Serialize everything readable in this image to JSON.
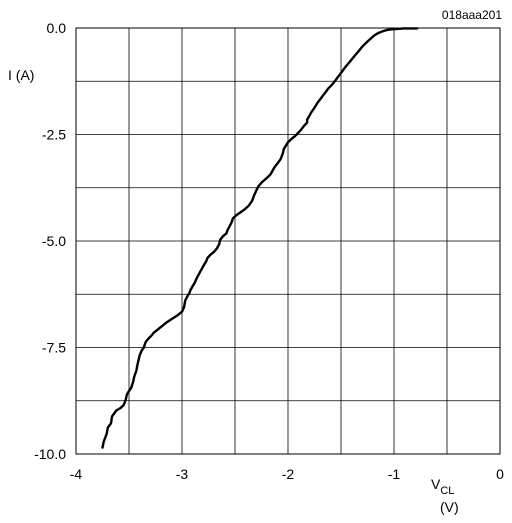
{
  "figure_ref": "018aaa201",
  "chart_data": {
    "type": "line",
    "ylabel": "I (A)",
    "xlabel_main": "V",
    "xlabel_sub": "CL",
    "xlabel_unit": "(V)",
    "xlim": [
      -4,
      0
    ],
    "ylim": [
      -10,
      0
    ],
    "x_ticks": [
      -4,
      -3,
      -2,
      -1,
      0
    ],
    "x_tick_labels": [
      "-4",
      "-3",
      "-2",
      "-1",
      "0"
    ],
    "y_ticks": [
      0,
      -2.5,
      -5,
      -7.5,
      -10
    ],
    "y_tick_labels": [
      "0.0",
      "-2.5",
      "-5.0",
      "-7.5",
      "-10.0"
    ],
    "grid": true,
    "grid_x_step": 0.5,
    "grid_y_step": 1.25,
    "line_color": "#000000",
    "series": [
      {
        "x": [
          -3.75,
          -3.74,
          -3.71,
          -3.7,
          -3.67,
          -3.66,
          -3.62,
          -3.58,
          -3.55,
          -3.53,
          -3.52,
          -3.5,
          -3.48,
          -3.46,
          -3.45,
          -3.43,
          -3.42,
          -3.41,
          -3.4,
          -3.38,
          -3.36,
          -3.35,
          -3.34,
          -3.32,
          -3.3,
          -3.28,
          -3.27,
          -3.24,
          -3.2,
          -3.15,
          -3.09,
          -3.04,
          -3.0,
          -2.98,
          -2.97,
          -2.95,
          -2.93,
          -2.92,
          -2.9,
          -2.88,
          -2.87,
          -2.85,
          -2.83,
          -2.81,
          -2.79,
          -2.77,
          -2.76,
          -2.73,
          -2.7,
          -2.67,
          -2.65,
          -2.64,
          -2.61,
          -2.58,
          -2.57,
          -2.55,
          -2.53,
          -2.52,
          -2.49,
          -2.45,
          -2.41,
          -2.37,
          -2.34,
          -2.32,
          -2.3,
          -2.28,
          -2.25,
          -2.2,
          -2.17,
          -2.15,
          -2.13,
          -2.1,
          -2.07,
          -2.05,
          -2.04,
          -2.02,
          -2.0,
          -1.97,
          -1.94,
          -1.91,
          -1.88,
          -1.85,
          -1.82,
          -1.82,
          -1.8,
          -1.78,
          -1.75,
          -1.72,
          -1.68,
          -1.65,
          -1.62,
          -1.58,
          -1.55,
          -1.52,
          -1.49,
          -1.46,
          -1.42,
          -1.38,
          -1.34,
          -1.3,
          -1.26,
          -1.22,
          -1.19,
          -1.15,
          -1.11,
          -1.07,
          -1.02,
          -0.97,
          -0.91,
          -0.85,
          -0.78
        ],
        "y": [
          -9.85,
          -9.72,
          -9.52,
          -9.38,
          -9.28,
          -9.12,
          -8.98,
          -8.92,
          -8.85,
          -8.72,
          -8.6,
          -8.52,
          -8.45,
          -8.3,
          -8.18,
          -8.04,
          -7.9,
          -7.8,
          -7.69,
          -7.57,
          -7.5,
          -7.42,
          -7.36,
          -7.3,
          -7.25,
          -7.2,
          -7.16,
          -7.1,
          -7.02,
          -6.92,
          -6.82,
          -6.74,
          -6.66,
          -6.55,
          -6.4,
          -6.3,
          -6.22,
          -6.15,
          -6.06,
          -5.98,
          -5.92,
          -5.82,
          -5.73,
          -5.64,
          -5.55,
          -5.47,
          -5.4,
          -5.32,
          -5.26,
          -5.17,
          -5.08,
          -4.97,
          -4.88,
          -4.82,
          -4.74,
          -4.65,
          -4.55,
          -4.47,
          -4.4,
          -4.33,
          -4.26,
          -4.17,
          -4.06,
          -3.93,
          -3.82,
          -3.72,
          -3.63,
          -3.52,
          -3.45,
          -3.37,
          -3.28,
          -3.18,
          -3.08,
          -2.95,
          -2.84,
          -2.76,
          -2.68,
          -2.61,
          -2.55,
          -2.48,
          -2.4,
          -2.3,
          -2.22,
          -2.15,
          -2.07,
          -1.98,
          -1.87,
          -1.75,
          -1.62,
          -1.52,
          -1.42,
          -1.32,
          -1.22,
          -1.12,
          -1.02,
          -0.92,
          -0.8,
          -0.68,
          -0.56,
          -0.44,
          -0.34,
          -0.25,
          -0.18,
          -0.12,
          -0.08,
          -0.05,
          -0.03,
          -0.02,
          -0.01,
          -0.01,
          -0.01
        ]
      }
    ]
  }
}
